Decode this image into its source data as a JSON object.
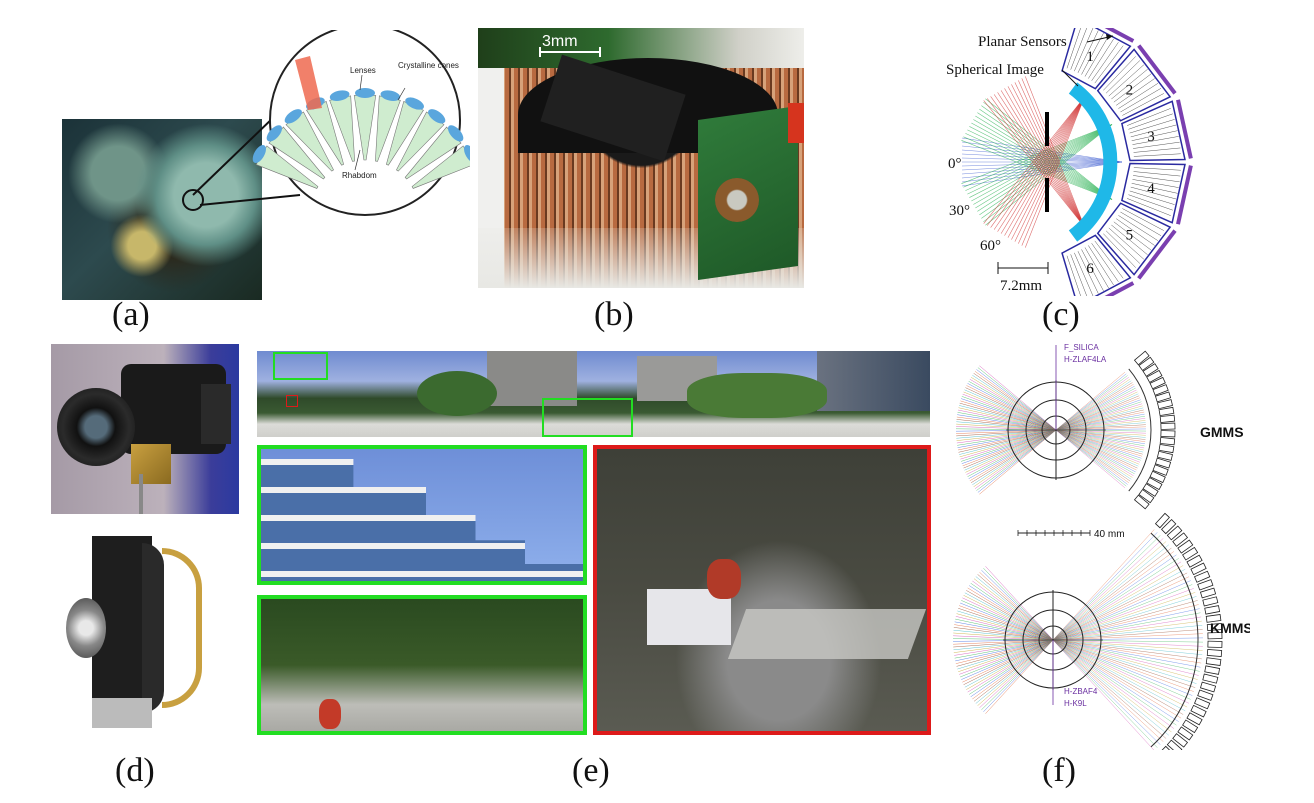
{
  "panels": {
    "a": {
      "caption": "(a)",
      "labels": {
        "lenses": "Lenses",
        "crystalline_cones": "Crystalline cones",
        "rhabdom": "Rhabdom"
      }
    },
    "b": {
      "caption": "(b)",
      "scale_label": "3mm"
    },
    "c": {
      "caption": "(c)",
      "planar_sensors": "Planar Sensors",
      "spherical_image": "Spherical Image",
      "sensor_numbers": [
        "1",
        "2",
        "3",
        "4",
        "5",
        "6"
      ],
      "angles": [
        "0°",
        "30°",
        "60°"
      ],
      "scale_label": "7.2mm"
    },
    "d": {
      "caption": "(d)"
    },
    "e": {
      "caption": "(e)"
    },
    "f": {
      "caption": "(f)",
      "gmms": "GMMS",
      "kmms": "KMMS",
      "scale_label": "40 mm",
      "glass_top": [
        "F_SILICA",
        "H-ZLAF4LA"
      ],
      "glass_bottom": [
        "H-ZBAF4",
        "H-K9L"
      ]
    }
  },
  "colors": {
    "sensor_outline": "#2a2aa0",
    "sensor_accent": "#7a3fb0",
    "spherical_image": "#1fb8e8",
    "inset_green": "#22dd22",
    "inset_red": "#dd1a1a",
    "glass_label": "#6a2fa0"
  }
}
